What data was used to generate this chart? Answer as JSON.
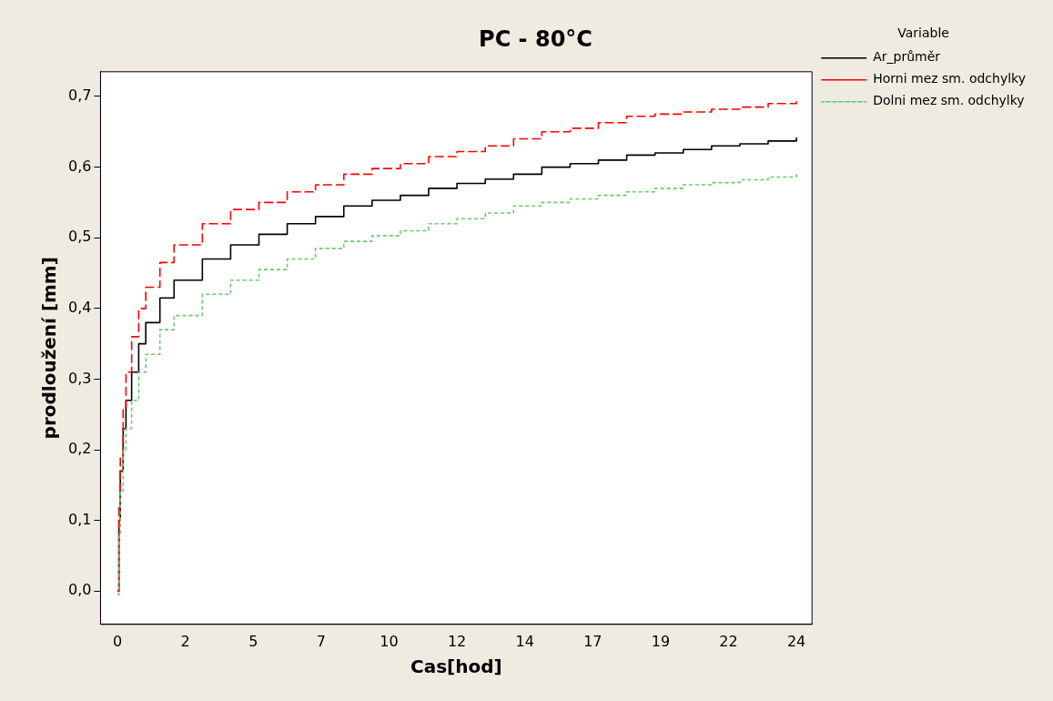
{
  "chart_data": {
    "type": "step",
    "title": "PC - 80°C",
    "xlabel": "Cas[hod]",
    "ylabel": "prodloužení [mm]",
    "legend_title": "Variable",
    "legend": "top right",
    "x": [
      0,
      0.05,
      0.1,
      0.2,
      0.3,
      0.5,
      0.75,
      1,
      1.5,
      2,
      3,
      4,
      5,
      6,
      7,
      8,
      9,
      10,
      11,
      12,
      13,
      14,
      15,
      16,
      17,
      18,
      19,
      20,
      21,
      22,
      23,
      24
    ],
    "series": [
      {
        "name": "Ar_průměr",
        "color": "#000000",
        "line_style": "solid",
        "values": [
          0,
          0.1,
          0.17,
          0.23,
          0.27,
          0.31,
          0.35,
          0.38,
          0.415,
          0.44,
          0.47,
          0.49,
          0.505,
          0.52,
          0.53,
          0.545,
          0.553,
          0.56,
          0.57,
          0.577,
          0.583,
          0.59,
          0.6,
          0.605,
          0.61,
          0.617,
          0.62,
          0.625,
          0.63,
          0.633,
          0.637,
          0.642
        ]
      },
      {
        "name": "Horni mez sm. odchylky",
        "color": "#ff0000",
        "line_style": "dashed",
        "values": [
          0,
          0.12,
          0.19,
          0.26,
          0.31,
          0.36,
          0.4,
          0.43,
          0.465,
          0.49,
          0.52,
          0.54,
          0.55,
          0.565,
          0.575,
          0.59,
          0.598,
          0.605,
          0.615,
          0.622,
          0.63,
          0.64,
          0.65,
          0.655,
          0.663,
          0.672,
          0.675,
          0.678,
          0.682,
          0.685,
          0.69,
          0.694
        ]
      },
      {
        "name": "Dolni mez sm. odchylky",
        "color": "#66cc66",
        "line_style": "dotted",
        "values": [
          -0.005,
          0.08,
          0.14,
          0.2,
          0.23,
          0.27,
          0.31,
          0.335,
          0.37,
          0.39,
          0.42,
          0.44,
          0.455,
          0.47,
          0.485,
          0.495,
          0.503,
          0.51,
          0.52,
          0.527,
          0.535,
          0.545,
          0.55,
          0.555,
          0.56,
          0.565,
          0.57,
          0.575,
          0.578,
          0.582,
          0.586,
          0.59
        ]
      }
    ],
    "xlim": [
      -0.6,
      24.55
    ],
    "xticks": [
      0,
      {
        "value": 2.4,
        "label": "2"
      },
      {
        "value": 4.8,
        "label": "5"
      },
      {
        "value": 7.2,
        "label": "7"
      },
      {
        "value": 9.6,
        "label": "10"
      },
      12,
      {
        "value": 14.4,
        "label": "14"
      },
      {
        "value": 16.8,
        "label": "17"
      },
      {
        "value": 19.2,
        "label": "19"
      },
      {
        "value": 21.6,
        "label": "22"
      },
      24
    ],
    "ylim": [
      -0.047,
      0.735
    ],
    "yticks": [
      {
        "value": 0,
        "label": "0,0"
      },
      {
        "value": 0.1,
        "label": "0,1"
      },
      {
        "value": 0.2,
        "label": "0,2"
      },
      {
        "value": 0.3,
        "label": "0,3"
      },
      {
        "value": 0.4,
        "label": "0,4"
      },
      {
        "value": 0.5,
        "label": "0,5"
      },
      {
        "value": 0.6,
        "label": "0,6"
      },
      {
        "value": 0.7,
        "label": "0,7"
      }
    ],
    "grid": false,
    "marker": "none"
  }
}
